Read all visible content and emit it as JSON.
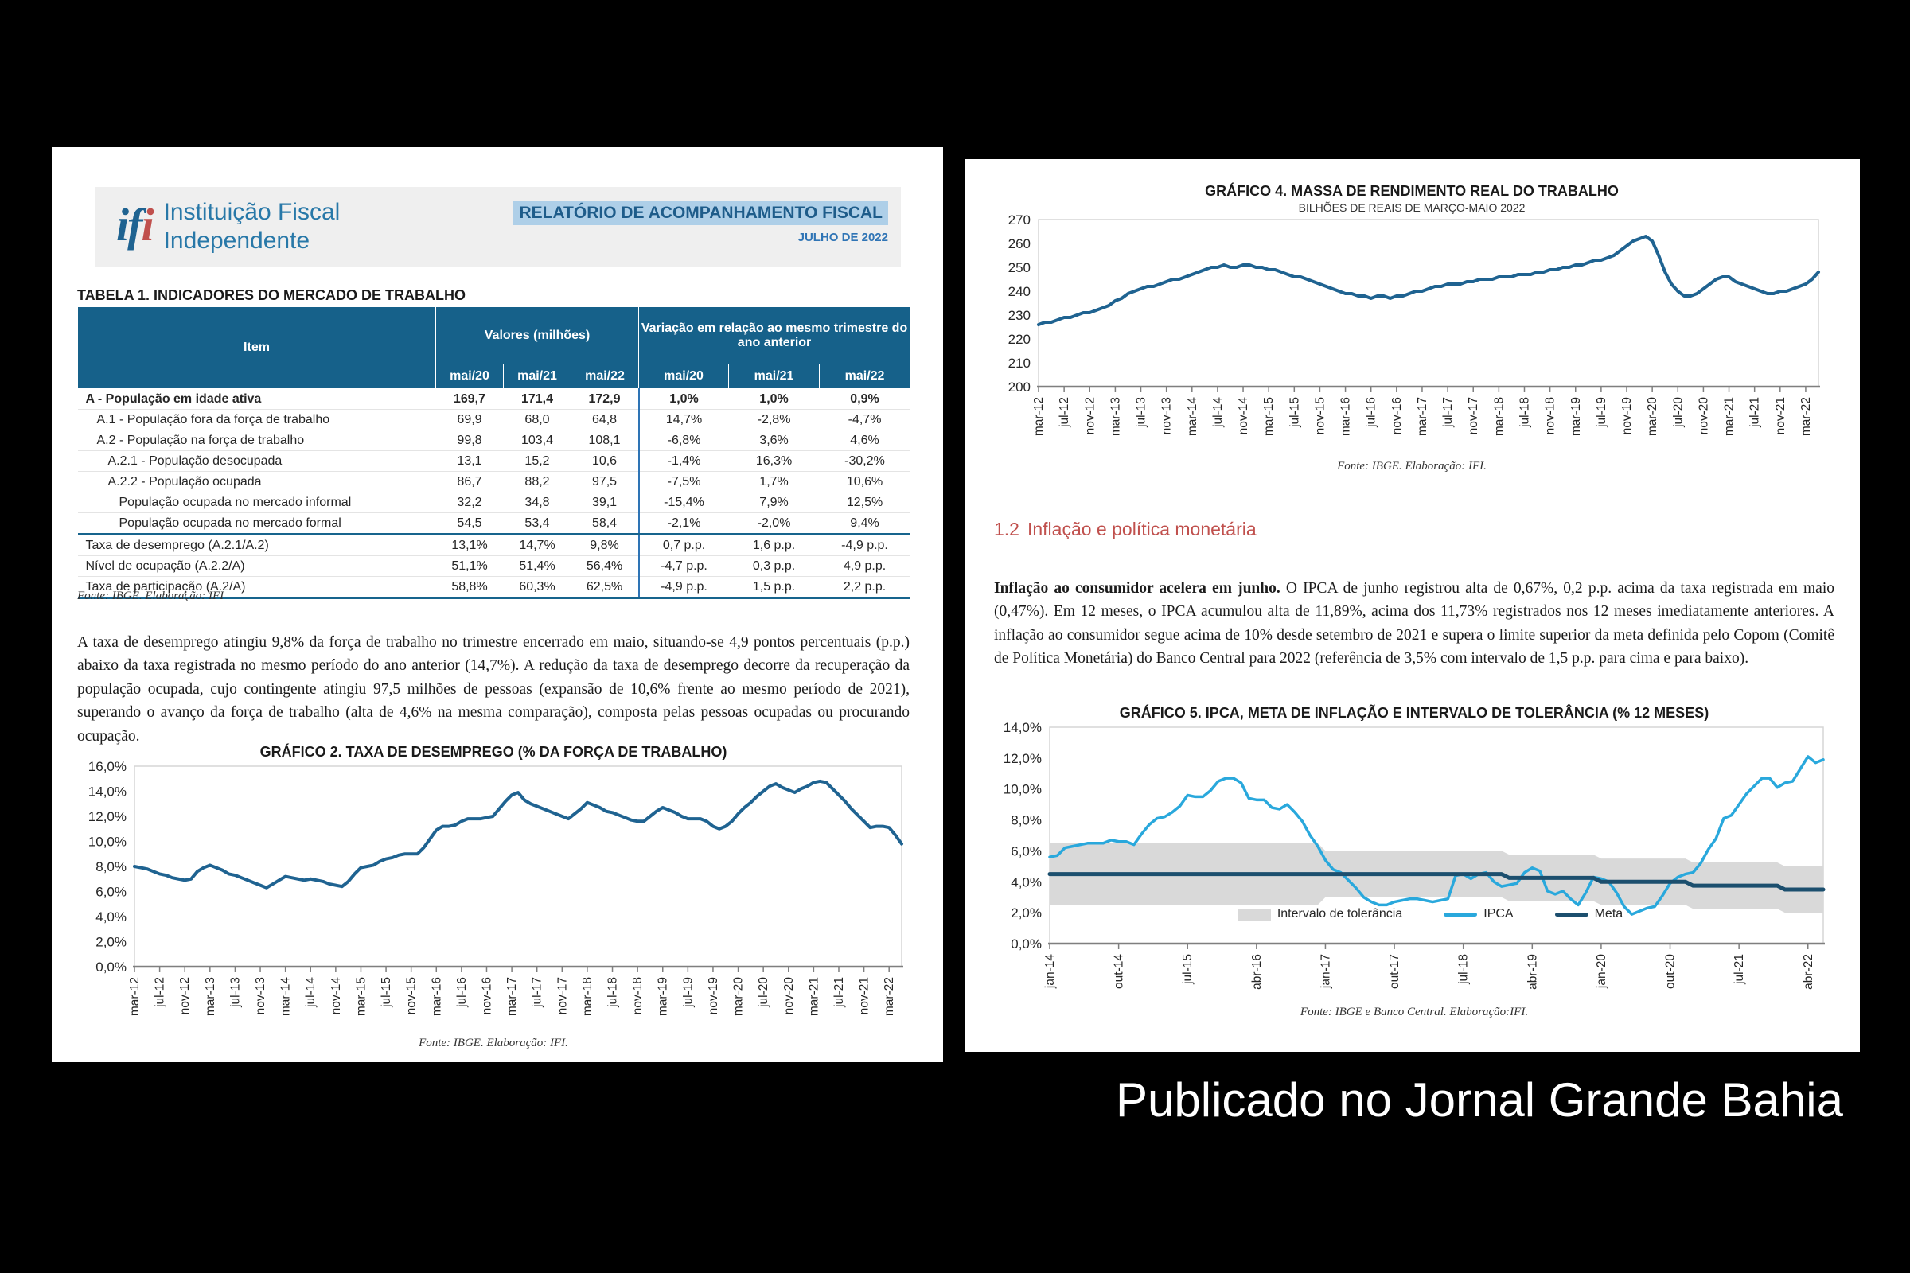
{
  "caption": "Publicado no Jornal Grande Bahia",
  "left_page": {
    "logo": {
      "mark_if": "if",
      "mark_i": "i",
      "name_line1": "Instituição Fiscal",
      "name_line2": "Independente"
    },
    "report_title": "RELATÓRIO DE ACOMPANHAMENTO FISCAL",
    "report_date": "JULHO DE 2022",
    "table": {
      "title": "TABELA 1. INDICADORES DO MERCADO DE TRABALHO",
      "col_item": "Item",
      "col_valores": "Valores (milhões)",
      "col_variacao": "Variação em relação ao mesmo trimestre do ano anterior",
      "sub_headers": [
        "mai/20",
        "mai/21",
        "mai/22",
        "mai/20",
        "mai/21",
        "mai/22"
      ],
      "rows": [
        {
          "label": "A - População em idade ativa",
          "indent": 0,
          "bold": true,
          "values": [
            "169,7",
            "171,4",
            "172,9",
            "1,0%",
            "1,0%",
            "0,9%"
          ]
        },
        {
          "label": "A.1 - População fora da força de trabalho",
          "indent": 1,
          "values": [
            "69,9",
            "68,0",
            "64,8",
            "14,7%",
            "-2,8%",
            "-4,7%"
          ]
        },
        {
          "label": "A.2 - População na força de trabalho",
          "indent": 1,
          "values": [
            "99,8",
            "103,4",
            "108,1",
            "-6,8%",
            "3,6%",
            "4,6%"
          ]
        },
        {
          "label": "A.2.1  - População desocupada",
          "indent": 2,
          "values": [
            "13,1",
            "15,2",
            "10,6",
            "-1,4%",
            "16,3%",
            "-30,2%"
          ]
        },
        {
          "label": "A.2.2  - População ocupada",
          "indent": 2,
          "values": [
            "86,7",
            "88,2",
            "97,5",
            "-7,5%",
            "1,7%",
            "10,6%"
          ]
        },
        {
          "label": "População ocupada no mercado informal",
          "indent": 3,
          "values": [
            "32,2",
            "34,8",
            "39,1",
            "-15,4%",
            "7,9%",
            "12,5%"
          ]
        },
        {
          "label": "População ocupada no mercado formal",
          "indent": 3,
          "values": [
            "54,5",
            "53,4",
            "58,4",
            "-2,1%",
            "-2,0%",
            "9,4%"
          ]
        },
        {
          "label": "Taxa de desemprego (A.2.1/A.2)",
          "indent": 0,
          "separator": true,
          "values": [
            "13,1%",
            "14,7%",
            "9,8%",
            "0,7 p.p.",
            "1,6 p.p.",
            "-4,9 p.p."
          ]
        },
        {
          "label": "Nível de ocupação (A.2.2/A)",
          "indent": 0,
          "values": [
            "51,1%",
            "51,4%",
            "56,4%",
            "-4,7 p.p.",
            "0,3 p.p.",
            "4,9 p.p."
          ]
        },
        {
          "label": "Taxa de participação (A.2/A)",
          "indent": 0,
          "values": [
            "58,8%",
            "60,3%",
            "62,5%",
            "-4,9 p.p.",
            "1,5 p.p.",
            "2,2 p.p."
          ]
        }
      ],
      "fonte": "Fonte: IBGE. Elaboração: IFI"
    },
    "paragraph": "A taxa de desemprego atingiu 9,8% da força de trabalho no trimestre encerrado em maio, situando-se 4,9 pontos percentuais (p.p.) abaixo da taxa registrada no mesmo período do ano anterior (14,7%). A redução da taxa de desemprego decorre da recuperação da população ocupada, cujo contingente atingiu 97,5 milhões de pessoas (expansão de 10,6% frente ao mesmo período de 2021), superando o avanço da força de trabalho (alta de 4,6% na mesma comparação), composta pelas pessoas ocupadas ou procurando ocupação."
  },
  "right_page": {
    "section_number": "1.2",
    "section_title": "Inflação e política monetária",
    "paragraph_lead": "Inflação ao consumidor acelera em junho.",
    "paragraph_rest": " O IPCA de junho registrou alta de 0,67%, 0,2 p.p. acima da taxa registrada em maio (0,47%). Em 12 meses, o IPCA acumulou alta de 11,89%, acima dos 11,73% registrados nos 12 meses imediatamente anteriores. A inflação ao consumidor segue acima de 10% desde setembro de 2021 e supera o limite superior da meta definida pelo Copom (Comitê de Política Monetária) do Banco Central para 2022 (referência de 3,5% com intervalo de 1,5 p.p. para cima e para baixo)."
  },
  "chart_data": [
    {
      "type": "line",
      "title": "GRÁFICO 2. TAXA DE DESEMPREGO (% DA FORÇA DE TRABALHO)",
      "fonte": "Fonte: IBGE. Elaboração: IFI.",
      "ylim": [
        0,
        16
      ],
      "ytick_labels": [
        "0,0%",
        "2,0%",
        "4,0%",
        "6,0%",
        "8,0%",
        "10,0%",
        "12,0%",
        "14,0%",
        "16,0%"
      ],
      "x_tick_step": 4,
      "x_tick_labels": [
        "mar-12",
        "jul-12",
        "nov-12",
        "mar-13",
        "jul-13",
        "nov-13",
        "mar-14",
        "jul-14",
        "nov-14",
        "mar-15",
        "jul-15",
        "nov-15",
        "mar-16",
        "jul-16",
        "nov-16",
        "mar-17",
        "jul-17",
        "nov-17",
        "mar-18",
        "jul-18",
        "nov-18",
        "mar-19",
        "jul-19",
        "nov-19",
        "mar-20",
        "jul-20",
        "nov-20",
        "mar-21",
        "jul-21",
        "nov-21",
        "mar-22"
      ],
      "line_color": "#1f6391",
      "values": [
        8.0,
        7.9,
        7.8,
        7.6,
        7.4,
        7.3,
        7.1,
        7.0,
        6.9,
        7.0,
        7.6,
        7.9,
        8.1,
        7.9,
        7.7,
        7.4,
        7.3,
        7.1,
        6.9,
        6.7,
        6.5,
        6.3,
        6.6,
        6.9,
        7.2,
        7.1,
        7.0,
        6.9,
        7.0,
        6.9,
        6.8,
        6.6,
        6.5,
        6.4,
        6.8,
        7.4,
        7.9,
        8.0,
        8.1,
        8.4,
        8.6,
        8.7,
        8.9,
        9.0,
        9.0,
        9.0,
        9.5,
        10.2,
        10.9,
        11.2,
        11.2,
        11.3,
        11.6,
        11.8,
        11.8,
        11.8,
        11.9,
        12.0,
        12.6,
        13.2,
        13.7,
        13.9,
        13.3,
        13.0,
        12.8,
        12.6,
        12.4,
        12.2,
        12.0,
        11.8,
        12.2,
        12.6,
        13.1,
        12.9,
        12.7,
        12.4,
        12.3,
        12.1,
        11.9,
        11.7,
        11.6,
        11.6,
        12.0,
        12.4,
        12.7,
        12.5,
        12.3,
        12.0,
        11.8,
        11.8,
        11.8,
        11.6,
        11.2,
        11.0,
        11.2,
        11.6,
        12.2,
        12.7,
        13.1,
        13.6,
        14.0,
        14.4,
        14.6,
        14.3,
        14.1,
        13.9,
        14.2,
        14.4,
        14.7,
        14.8,
        14.7,
        14.2,
        13.7,
        13.2,
        12.6,
        12.1,
        11.6,
        11.1,
        11.2,
        11.2,
        11.1,
        10.5,
        9.8
      ]
    },
    {
      "type": "line",
      "title": "GRÁFICO 4. MASSA DE RENDIMENTO REAL DO TRABALHO",
      "subtitle": "BILHÕES DE REAIS  DE MARÇO-MAIO 2022",
      "fonte": "Fonte: IBGE. Elaboração: IFI.",
      "ylim": [
        200,
        270
      ],
      "ytick_labels": [
        "200",
        "210",
        "220",
        "230",
        "240",
        "250",
        "260",
        "270"
      ],
      "x_tick_step": 4,
      "x_tick_labels": [
        "mar-12",
        "jul-12",
        "nov-12",
        "mar-13",
        "jul-13",
        "nov-13",
        "mar-14",
        "jul-14",
        "nov-14",
        "mar-15",
        "jul-15",
        "nov-15",
        "mar-16",
        "jul-16",
        "nov-16",
        "mar-17",
        "jul-17",
        "nov-17",
        "mar-18",
        "jul-18",
        "nov-18",
        "mar-19",
        "jul-19",
        "nov-19",
        "mar-20",
        "jul-20",
        "nov-20",
        "mar-21",
        "jul-21",
        "nov-21",
        "mar-22"
      ],
      "line_color": "#1f6391",
      "values": [
        226,
        227,
        227,
        228,
        229,
        229,
        230,
        231,
        231,
        232,
        233,
        234,
        236,
        237,
        239,
        240,
        241,
        242,
        242,
        243,
        244,
        245,
        245,
        246,
        247,
        248,
        249,
        250,
        250,
        251,
        250,
        250,
        251,
        251,
        250,
        250,
        249,
        249,
        248,
        247,
        246,
        246,
        245,
        244,
        243,
        242,
        241,
        240,
        239,
        239,
        238,
        238,
        237,
        238,
        238,
        237,
        238,
        238,
        239,
        240,
        240,
        241,
        242,
        242,
        243,
        243,
        243,
        244,
        244,
        245,
        245,
        245,
        246,
        246,
        246,
        247,
        247,
        247,
        248,
        248,
        249,
        249,
        250,
        250,
        251,
        251,
        252,
        253,
        253,
        254,
        255,
        257,
        259,
        261,
        262,
        263,
        261,
        255,
        248,
        243,
        240,
        238,
        238,
        239,
        241,
        243,
        245,
        246,
        246,
        244,
        243,
        242,
        241,
        240,
        239,
        239,
        240,
        240,
        241,
        242,
        243,
        245,
        248
      ]
    },
    {
      "type": "line",
      "title": "GRÁFICO 5. IPCA, META DE INFLAÇÃO E INTERVALO DE TOLERÂNCIA (% 12 MESES)",
      "fonte": "Fonte: IBGE e Banco Central. Elaboração:IFI.",
      "ylim": [
        0,
        14
      ],
      "ytick_labels": [
        "0,0%",
        "2,0%",
        "4,0%",
        "6,0%",
        "8,0%",
        "10,0%",
        "12,0%",
        "14,0%"
      ],
      "x_tick_step": 9,
      "x_tick_labels": [
        "jan-14",
        "out-14",
        "jul-15",
        "abr-16",
        "jan-17",
        "out-17",
        "jul-18",
        "abr-19",
        "jan-20",
        "out-20",
        "jul-21",
        "abr-22"
      ],
      "legend": [
        {
          "label": "Intervalo de tolerância",
          "swatch": "band",
          "color": "#d9d9d9"
        },
        {
          "label": "IPCA",
          "swatch": "line",
          "color": "#29a8dc"
        },
        {
          "label": "Meta",
          "swatch": "line",
          "color": "#1c4f6e"
        }
      ],
      "band_color": "#d9d9d9",
      "band_segments": [
        {
          "count": 36,
          "lower": 2.5,
          "upper": 6.5
        },
        {
          "count": 24,
          "lower": 3.0,
          "upper": 6.0
        },
        {
          "count": 12,
          "lower": 2.75,
          "upper": 5.75
        },
        {
          "count": 12,
          "lower": 2.5,
          "upper": 5.5
        },
        {
          "count": 12,
          "lower": 2.25,
          "upper": 5.25
        },
        {
          "count": 6,
          "lower": 2.0,
          "upper": 5.0
        }
      ],
      "series": [
        {
          "name": "IPCA",
          "color": "#29a8dc",
          "width": 3.5,
          "values": [
            5.6,
            5.7,
            6.2,
            6.3,
            6.4,
            6.5,
            6.5,
            6.5,
            6.7,
            6.6,
            6.6,
            6.4,
            7.1,
            7.7,
            8.1,
            8.2,
            8.5,
            8.9,
            9.6,
            9.5,
            9.5,
            9.9,
            10.5,
            10.7,
            10.7,
            10.4,
            9.4,
            9.3,
            9.3,
            8.8,
            8.7,
            9.0,
            8.5,
            7.9,
            7.0,
            6.3,
            5.4,
            4.8,
            4.6,
            4.1,
            3.6,
            3.0,
            2.7,
            2.5,
            2.5,
            2.7,
            2.8,
            2.9,
            2.9,
            2.8,
            2.7,
            2.8,
            2.9,
            4.4,
            4.5,
            4.2,
            4.5,
            4.6,
            4.0,
            3.7,
            3.8,
            3.9,
            4.6,
            4.9,
            4.7,
            3.4,
            3.2,
            3.4,
            2.9,
            2.5,
            3.3,
            4.3,
            4.2,
            4.0,
            3.3,
            2.4,
            1.9,
            2.1,
            2.3,
            2.4,
            3.1,
            3.9,
            4.3,
            4.5,
            4.6,
            5.2,
            6.1,
            6.8,
            8.1,
            8.3,
            9.0,
            9.7,
            10.2,
            10.7,
            10.7,
            10.1,
            10.4,
            10.5,
            11.3,
            12.1,
            11.7,
            11.9
          ]
        },
        {
          "name": "Meta",
          "color": "#1c4f6e",
          "width": 5,
          "segments": [
            {
              "count": 60,
              "value": 4.5
            },
            {
              "count": 12,
              "value": 4.25
            },
            {
              "count": 12,
              "value": 4.0
            },
            {
              "count": 12,
              "value": 3.75
            },
            {
              "count": 6,
              "value": 3.5
            }
          ]
        }
      ]
    }
  ]
}
